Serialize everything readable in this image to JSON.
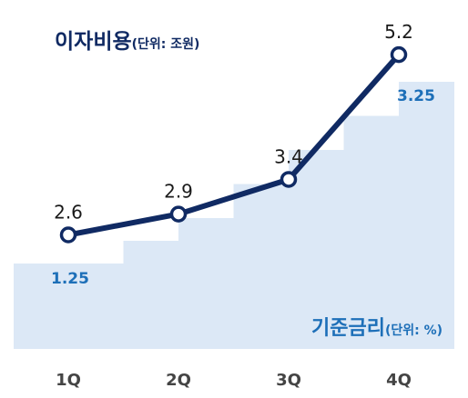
{
  "chart_data": {
    "type": "line",
    "categories": [
      "1Q",
      "2Q",
      "3Q",
      "4Q"
    ],
    "series": [
      {
        "name": "이자비용",
        "unit": "조원",
        "render": "line",
        "values": [
          2.6,
          2.9,
          3.4,
          5.2
        ],
        "labels": [
          "2.6",
          "2.9",
          "3.4",
          "5.2"
        ],
        "color": "#102a63"
      },
      {
        "name": "기준금리",
        "unit": "%",
        "render": "step-area",
        "values": [
          1.25,
          1.75,
          2.5,
          3.25
        ],
        "labels": [
          "1.25",
          "",
          "",
          "3.25"
        ],
        "color": "#dce8f6",
        "label_color": "#1d6fb8"
      }
    ],
    "titles": {
      "interest": {
        "main": "이자비용",
        "unit": "(단위: 조원)"
      },
      "rate": {
        "main": "기준금리",
        "unit": "(단위: %)"
      }
    },
    "grid": false,
    "axis_label_color": "#444444"
  }
}
